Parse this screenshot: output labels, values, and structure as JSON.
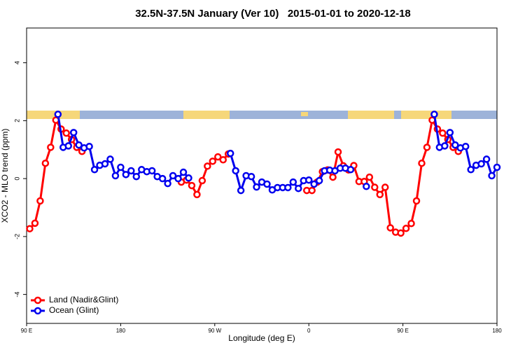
{
  "chart_data": {
    "type": "line",
    "title": "32.5N-37.5N January (Ver 10)   2015-01-01 to 2020-12-18",
    "x_label": "Longitude (deg E)",
    "y_label": "XCO2 - MLO trend (ppm)",
    "xlim": [
      90,
      540
    ],
    "xticks": [
      {
        "value": 90,
        "label": "90 E"
      },
      {
        "value": 180,
        "label": "180"
      },
      {
        "value": 270,
        "label": "90 W"
      },
      {
        "value": 360,
        "label": "0"
      },
      {
        "value": 450,
        "label": "90 E"
      },
      {
        "value": 540,
        "label": "180"
      }
    ],
    "ylim": [
      -5,
      5.2
    ],
    "yticks": [
      -4,
      -2,
      0,
      2,
      4
    ],
    "legend": "bottom-left",
    "series": [
      {
        "name": "Land (Nadir&Glint)",
        "color": "#ff0000",
        "x": [
          93,
          98,
          103,
          108,
          113,
          118,
          123,
          128,
          133,
          138,
          143,
          148,
          153,
          158,
          163,
          168,
          173,
          178,
          183,
          188,
          193,
          198,
          203,
          208,
          213,
          218,
          223,
          228,
          233,
          238,
          243,
          248,
          253,
          258,
          263,
          268,
          273,
          278,
          283,
          288,
          293,
          298,
          303,
          308,
          313,
          318,
          323,
          328,
          333,
          338,
          343,
          348,
          353,
          358,
          363,
          368,
          373,
          378,
          383,
          388,
          393,
          398,
          403,
          408,
          413,
          418,
          423,
          428,
          433,
          438,
          443,
          448,
          453,
          458,
          463,
          468,
          473,
          478,
          483,
          488,
          493,
          498,
          503
        ],
        "values": [
          -1.73,
          -1.54,
          -0.77,
          0.53,
          1.08,
          2.02,
          1.71,
          1.57,
          1.35,
          1.08,
          0.94,
          null,
          null,
          null,
          null,
          null,
          null,
          null,
          null,
          null,
          null,
          null,
          null,
          null,
          null,
          null,
          null,
          null,
          null,
          -0.12,
          -0.05,
          -0.24,
          -0.55,
          -0.07,
          0.43,
          0.6,
          0.75,
          0.65,
          0.85,
          null,
          null,
          null,
          null,
          null,
          null,
          null,
          null,
          null,
          null,
          null,
          null,
          null,
          null,
          -0.41,
          -0.41,
          -0.12,
          0.24,
          0.3,
          0.05,
          0.92,
          0.44,
          0.3,
          0.45,
          -0.1,
          -0.1,
          0.05,
          -0.3,
          -0.55,
          -0.3,
          -1.7,
          -1.85,
          -1.88,
          -1.72,
          -1.55,
          -0.77,
          0.53,
          1.08,
          2.02,
          1.71,
          1.57,
          1.35,
          1.08,
          0.94
        ]
      },
      {
        "name": "Ocean (Glint)",
        "color": "#0000ee",
        "x": [
          120,
          125,
          130,
          135,
          140,
          145,
          150,
          155,
          160,
          165,
          170,
          175,
          180,
          185,
          190,
          195,
          200,
          205,
          210,
          215,
          220,
          225,
          230,
          235,
          240,
          245,
          250,
          255,
          260,
          265,
          270,
          275,
          280,
          285,
          290,
          295,
          300,
          305,
          310,
          315,
          320,
          325,
          330,
          335,
          340,
          345,
          350,
          355,
          360,
          365,
          370,
          375,
          380,
          385,
          390,
          395,
          400,
          405,
          410,
          415,
          420,
          425,
          430,
          435,
          440,
          445,
          450,
          455,
          460,
          465,
          470,
          475,
          480,
          485,
          490,
          495,
          500,
          505,
          510,
          515,
          520,
          525,
          530,
          535,
          540
        ],
        "values": [
          2.22,
          1.08,
          1.13,
          1.59,
          1.16,
          1.06,
          1.11,
          0.31,
          0.46,
          0.51,
          0.67,
          0.1,
          0.39,
          0.14,
          0.27,
          0.07,
          0.31,
          0.24,
          0.27,
          0.07,
          0,
          -0.17,
          0.1,
          0,
          0.22,
          0.02,
          null,
          null,
          null,
          null,
          null,
          null,
          null,
          0.87,
          0.27,
          -0.41,
          0.1,
          0.07,
          -0.29,
          -0.12,
          -0.19,
          -0.39,
          -0.31,
          -0.31,
          -0.31,
          -0.12,
          -0.34,
          -0.07,
          -0.05,
          -0.19,
          -0.07,
          0.27,
          0.29,
          0.27,
          0.36,
          0.36,
          0.31,
          null,
          null,
          -0.27,
          null,
          null,
          null,
          null,
          null,
          null,
          null,
          null,
          null,
          null,
          null,
          null,
          2.22,
          1.08,
          1.13,
          1.59,
          1.16,
          1.06,
          1.11,
          0.31,
          0.46,
          0.51,
          0.67,
          0.1,
          0.39
        ]
      }
    ]
  }
}
